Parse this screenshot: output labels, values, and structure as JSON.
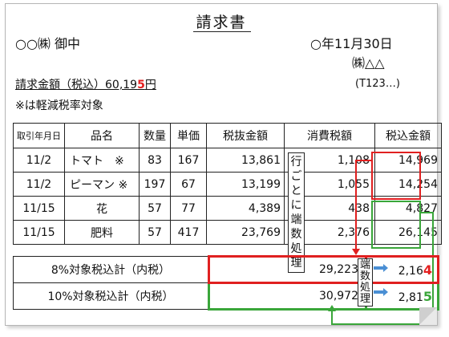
{
  "invoice": {
    "title": "請求書",
    "recipient": "○○㈱ 御中",
    "date": "○年11月30日",
    "issuer": "㈱△△",
    "registration_number": "(T123…)",
    "amount_label": "請求金額（税込）60,19",
    "amount_highlight": "5",
    "amount_suffix": "円",
    "note": "※は軽減税率対象"
  },
  "table": {
    "headers": [
      "取引年月日",
      "品名",
      "数量",
      "単価",
      "税抜金額",
      "消費税額",
      "税込金額"
    ],
    "rows": [
      {
        "date": "11/2",
        "item": "トマト　※",
        "qty": "83",
        "price": "167",
        "net": "13,861",
        "tax": "1,108",
        "gross": "14,969"
      },
      {
        "date": "11/2",
        "item": "ピーマン ※",
        "qty": "197",
        "price": "67",
        "net": "13,199",
        "tax": "1,055",
        "gross": "14,254"
      },
      {
        "date": "11/15",
        "item": "花",
        "qty": "57",
        "price": "77",
        "net": "4,389",
        "tax": "438",
        "gross": "4,827"
      },
      {
        "date": "11/15",
        "item": "肥料",
        "qty": "57",
        "price": "417",
        "net": "23,769",
        "tax": "2,376",
        "gross": "26,145"
      }
    ],
    "rounding_note_chars": [
      "行",
      "ご",
      "と",
      "に",
      "端",
      "数",
      "処",
      "理"
    ]
  },
  "summary": {
    "rate8_label": "8%対象税込計（内税）",
    "rate8_total": "29,223",
    "rate8_tax_main": "2,16",
    "rate8_tax_highlight": "4",
    "rate10_label": "10%対象税込計（内税）",
    "rate10_total": "30,972",
    "rate10_tax_main": "2,81",
    "rate10_tax_highlight": "5",
    "rounding_note_chars": [
      "端",
      "数",
      "処",
      "理"
    ]
  },
  "colors": {
    "red_box": "#e02020",
    "green_box": "#3aa63a",
    "arrow_blue": "#4a8fd4"
  }
}
